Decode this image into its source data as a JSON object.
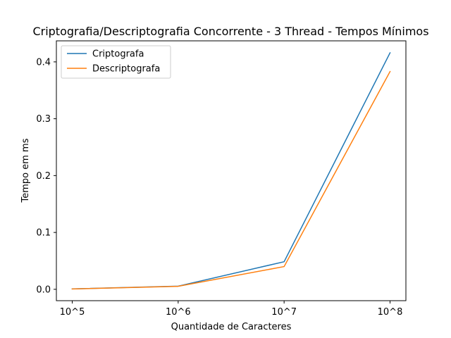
{
  "chart_data": {
    "type": "line",
    "title": "Criptografia/Descriptografia Concorrente - 3 Thread - Tempos Mínimos",
    "xlabel": "Quantidade de Caracteres",
    "ylabel": "Tempo em ms",
    "categories": [
      "10^5",
      "10^6",
      "10^7",
      "10^8"
    ],
    "ylim": [
      -0.02,
      0.437
    ],
    "yticks": [
      0.0,
      0.1,
      0.2,
      0.3,
      0.4
    ],
    "ytick_labels": [
      "0.0",
      "0.1",
      "0.2",
      "0.3",
      "0.4"
    ],
    "grid": false,
    "legend_position": "upper-left",
    "series": [
      {
        "name": "Criptografa",
        "color": "#1f77b4",
        "values": [
          0.0008,
          0.0055,
          0.0485,
          0.416
        ]
      },
      {
        "name": "Descriptografa",
        "color": "#ff7f0e",
        "values": [
          0.0006,
          0.0053,
          0.04,
          0.383
        ]
      }
    ]
  }
}
